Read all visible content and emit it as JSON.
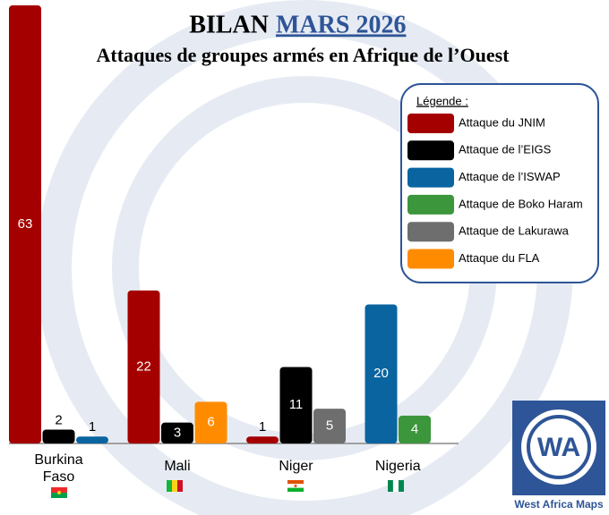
{
  "chart_data": {
    "type": "bar",
    "title": "BILAN",
    "title_highlight": "MARS 2026",
    "subtitle": "Attaques de groupes armés en Afrique de l’Ouest",
    "legend_title": "Légende :",
    "categories": [
      "Burkina Faso",
      "Mali",
      "Niger",
      "Nigeria"
    ],
    "series": [
      {
        "name": "Attaque du JNIM",
        "color": "#a50000",
        "values": [
          63,
          22,
          1,
          null
        ]
      },
      {
        "name": "Attaque de l’EIGS",
        "color": "#000000",
        "values": [
          2,
          3,
          11,
          null
        ]
      },
      {
        "name": "Attaque de l’ISWAP",
        "color": "#0a64a0",
        "values": [
          1,
          null,
          null,
          20
        ]
      },
      {
        "name": "Attaque de Boko Haram",
        "color": "#3c963c",
        "values": [
          null,
          null,
          null,
          4
        ]
      },
      {
        "name": "Attaque de Lakurawa",
        "color": "#6e6e6e",
        "values": [
          null,
          null,
          5,
          null
        ]
      },
      {
        "name": "Attaque du FLA",
        "color": "#ff8c00",
        "values": [
          null,
          6,
          null,
          null
        ]
      }
    ],
    "legend": "top-right"
  },
  "logo": {
    "mark": "WA",
    "text": "West Africa Maps"
  }
}
